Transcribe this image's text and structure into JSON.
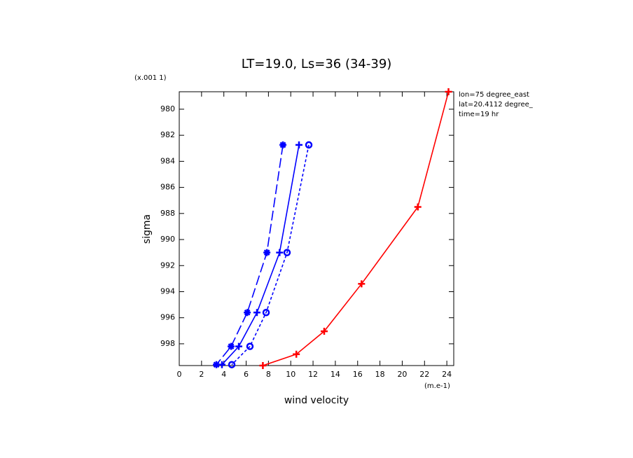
{
  "chart_data": {
    "type": "line",
    "title": "LT=19.0, Ls=36 (34-39)",
    "y_label": "sigma",
    "y_scale_note": "(x.001 1)",
    "x_label": "wind velocity",
    "x_unit_note": "(m.e-1)",
    "annotations": [
      "lon=75 degree_east",
      "lat=20.4112 degree_",
      "time=19 hr"
    ],
    "xlim": [
      0,
      24.62
    ],
    "xticks": [
      0,
      2,
      4,
      6,
      8,
      10,
      12,
      14,
      16,
      18,
      20,
      22,
      24
    ],
    "ylim": [
      999.67,
      978.66
    ],
    "yticks": [
      980,
      982,
      984,
      986,
      988,
      990,
      992,
      994,
      996,
      998
    ],
    "series": [
      {
        "color": "#0000ff",
        "dash": "solid",
        "marker": "plus",
        "x": [
          10.74,
          9.0,
          6.97,
          5.34,
          3.83
        ],
        "values": [
          982.74,
          991.0,
          995.6,
          998.2,
          999.6
        ]
      },
      {
        "color": "#0000ff",
        "dash": "long",
        "marker": "asterisk",
        "x": [
          9.3,
          7.86,
          6.1,
          4.65,
          3.33
        ],
        "values": [
          982.74,
          991.0,
          995.6,
          998.2,
          999.6
        ]
      },
      {
        "color": "#0000ff",
        "dash": "short",
        "marker": "circle",
        "x": [
          11.62,
          9.67,
          7.79,
          6.34,
          4.71
        ],
        "values": [
          982.74,
          991.0,
          995.6,
          998.2,
          999.6
        ]
      },
      {
        "color": "#ff0000",
        "dash": "solid",
        "marker": "plus",
        "x": [
          7.5,
          10.5,
          13.0,
          16.35,
          21.4,
          24.15
        ],
        "values": [
          999.67,
          998.8,
          997.04,
          993.4,
          987.5,
          978.66
        ]
      }
    ]
  }
}
